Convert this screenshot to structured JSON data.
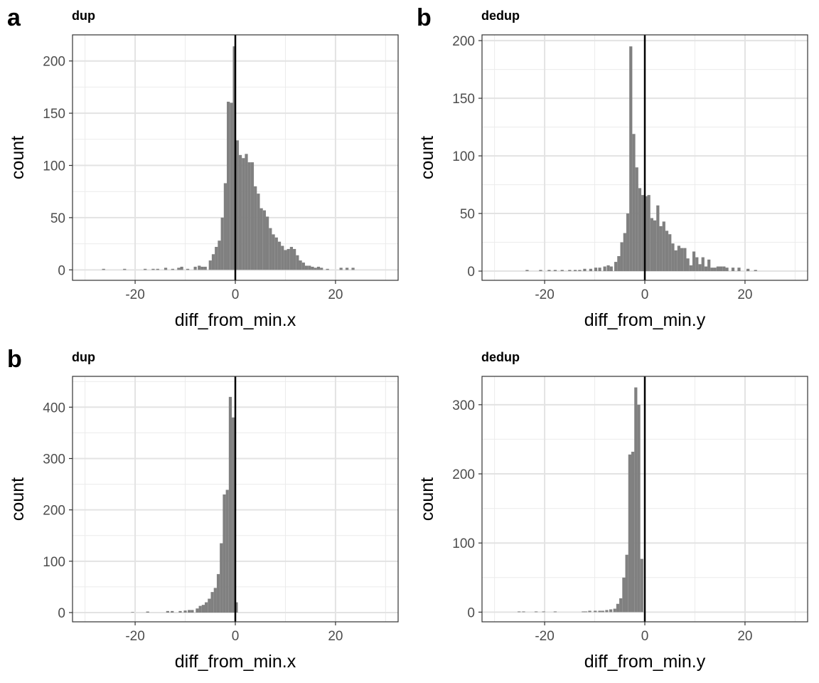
{
  "chart_data": [
    {
      "type": "bar",
      "panel_label": "a",
      "title": "dup",
      "xlabel": "diff_from_min.x",
      "ylabel": "count",
      "xlim": [
        -32.5,
        32.5
      ],
      "ylim": [
        -10,
        225
      ],
      "xticks": [
        -20,
        0,
        20
      ],
      "xtick_labels": [
        "-20",
        "0",
        "20"
      ],
      "yticks": [
        0,
        50,
        100,
        150,
        200
      ],
      "ytick_labels": [
        "0",
        "50",
        "100",
        "150",
        "200"
      ],
      "vline": 0,
      "grid": true,
      "bin_width": 0.6,
      "bins": [
        [
          -26.3,
          1
        ],
        [
          -22.1,
          1
        ],
        [
          -18.0,
          1
        ],
        [
          -16.4,
          1
        ],
        [
          -15.5,
          1
        ],
        [
          -13.9,
          2
        ],
        [
          -12.5,
          1
        ],
        [
          -11.3,
          2
        ],
        [
          -10.7,
          3
        ],
        [
          -9.5,
          1
        ],
        [
          -8.0,
          3
        ],
        [
          -7.2,
          4
        ],
        [
          -6.6,
          3
        ],
        [
          -6.0,
          3
        ],
        [
          -5.0,
          9
        ],
        [
          -4.4,
          15
        ],
        [
          -3.8,
          22
        ],
        [
          -3.2,
          28
        ],
        [
          -2.6,
          50
        ],
        [
          -2.0,
          83
        ],
        [
          -1.4,
          161
        ],
        [
          -0.8,
          160
        ],
        [
          -0.2,
          214
        ],
        [
          0.4,
          124
        ],
        [
          1.0,
          110
        ],
        [
          1.6,
          107
        ],
        [
          2.2,
          111
        ],
        [
          2.8,
          103
        ],
        [
          3.4,
          103
        ],
        [
          4.0,
          80
        ],
        [
          4.6,
          73
        ],
        [
          5.2,
          59
        ],
        [
          5.8,
          57
        ],
        [
          6.4,
          51
        ],
        [
          7.0,
          40
        ],
        [
          7.6,
          34
        ],
        [
          8.2,
          31
        ],
        [
          8.8,
          27
        ],
        [
          9.4,
          23
        ],
        [
          10.0,
          19
        ],
        [
          10.6,
          20
        ],
        [
          11.2,
          22
        ],
        [
          11.8,
          20
        ],
        [
          12.4,
          14
        ],
        [
          13.0,
          9
        ],
        [
          13.6,
          7
        ],
        [
          14.2,
          4
        ],
        [
          14.8,
          4
        ],
        [
          15.4,
          3
        ],
        [
          16.0,
          2
        ],
        [
          16.6,
          3
        ],
        [
          17.2,
          2
        ],
        [
          18.4,
          1
        ],
        [
          21.1,
          2
        ],
        [
          22.3,
          2
        ],
        [
          23.5,
          2
        ]
      ]
    },
    {
      "type": "bar",
      "panel_label": "b",
      "title": "dedup",
      "xlabel": "diff_from_min.y",
      "ylabel": "count",
      "xlim": [
        -32.5,
        32.5
      ],
      "ylim": [
        -8,
        205
      ],
      "xticks": [
        -20,
        0,
        20
      ],
      "xtick_labels": [
        "-20",
        "0",
        "20"
      ],
      "yticks": [
        0,
        50,
        100,
        150,
        200
      ],
      "ytick_labels": [
        "0",
        "50",
        "100",
        "150",
        "200"
      ],
      "vline": 0,
      "grid": true,
      "bin_width": 0.6,
      "bins": [
        [
          -23.5,
          1
        ],
        [
          -20.8,
          1
        ],
        [
          -19.1,
          1
        ],
        [
          -17.9,
          1
        ],
        [
          -16.5,
          1
        ],
        [
          -15.0,
          1
        ],
        [
          -13.9,
          1
        ],
        [
          -13.0,
          1
        ],
        [
          -12.0,
          2
        ],
        [
          -10.8,
          2
        ],
        [
          -9.8,
          3
        ],
        [
          -9.0,
          3
        ],
        [
          -8.0,
          4
        ],
        [
          -7.3,
          5
        ],
        [
          -6.7,
          4
        ],
        [
          -5.8,
          8
        ],
        [
          -5.2,
          13
        ],
        [
          -4.6,
          25
        ],
        [
          -4.0,
          33
        ],
        [
          -3.4,
          50
        ],
        [
          -2.8,
          195
        ],
        [
          -2.2,
          119
        ],
        [
          -1.6,
          90
        ],
        [
          -1.0,
          72
        ],
        [
          -0.4,
          66
        ],
        [
          0.2,
          65
        ],
        [
          0.8,
          66
        ],
        [
          1.4,
          46
        ],
        [
          2.0,
          44
        ],
        [
          2.6,
          57
        ],
        [
          3.2,
          39
        ],
        [
          3.8,
          43
        ],
        [
          4.4,
          35
        ],
        [
          5.0,
          32
        ],
        [
          5.6,
          24
        ],
        [
          6.2,
          18
        ],
        [
          6.8,
          22
        ],
        [
          7.4,
          20
        ],
        [
          8.0,
          20
        ],
        [
          8.6,
          11
        ],
        [
          9.2,
          5
        ],
        [
          9.8,
          17
        ],
        [
          10.4,
          12
        ],
        [
          11.0,
          6
        ],
        [
          11.6,
          12
        ],
        [
          12.2,
          4
        ],
        [
          12.8,
          10
        ],
        [
          13.4,
          3
        ],
        [
          14.0,
          3
        ],
        [
          14.6,
          4
        ],
        [
          15.2,
          4
        ],
        [
          15.8,
          4
        ],
        [
          16.4,
          3
        ],
        [
          17.6,
          3
        ],
        [
          18.8,
          3
        ],
        [
          20.6,
          2
        ],
        [
          22.1,
          1
        ]
      ]
    },
    {
      "type": "bar",
      "panel_label": "b",
      "title": "dup",
      "xlabel": "diff_from_min.x",
      "ylabel": "count",
      "xlim": [
        -32.5,
        32.5
      ],
      "ylim": [
        -18,
        460
      ],
      "xticks": [
        -20,
        0,
        20
      ],
      "xtick_labels": [
        "-20",
        "0",
        "20"
      ],
      "yticks": [
        0,
        100,
        200,
        300,
        400
      ],
      "ytick_labels": [
        "0",
        "100",
        "200",
        "300",
        "400"
      ],
      "vline": 0,
      "grid": true,
      "bin_width": 0.6,
      "bins": [
        [
          -20.5,
          1
        ],
        [
          -17.5,
          2
        ],
        [
          -13.5,
          3
        ],
        [
          -12.6,
          3
        ],
        [
          -11.0,
          3
        ],
        [
          -10.0,
          4
        ],
        [
          -9.2,
          5
        ],
        [
          -8.6,
          5
        ],
        [
          -7.6,
          8
        ],
        [
          -7.0,
          13
        ],
        [
          -6.4,
          15
        ],
        [
          -5.8,
          20
        ],
        [
          -5.2,
          27
        ],
        [
          -4.6,
          40
        ],
        [
          -4.0,
          48
        ],
        [
          -3.4,
          75
        ],
        [
          -2.8,
          135
        ],
        [
          -2.2,
          230
        ],
        [
          -1.6,
          239
        ],
        [
          -1.0,
          420
        ],
        [
          -0.4,
          380
        ],
        [
          0.2,
          20
        ]
      ]
    },
    {
      "type": "bar",
      "panel_label": "",
      "title": "dedup",
      "xlabel": "diff_from_min.y",
      "ylabel": "count",
      "xlim": [
        -32.5,
        32.5
      ],
      "ylim": [
        -14,
        341
      ],
      "xticks": [
        -20,
        0,
        20
      ],
      "xtick_labels": [
        "-20",
        "0",
        "20"
      ],
      "yticks": [
        0,
        100,
        200,
        300
      ],
      "ytick_labels": [
        "0",
        "100",
        "200",
        "300"
      ],
      "vline": 0,
      "grid": true,
      "bin_width": 0.6,
      "bins": [
        [
          -25.1,
          1
        ],
        [
          -24.2,
          1
        ],
        [
          -21.7,
          1
        ],
        [
          -20.2,
          1
        ],
        [
          -17.9,
          1
        ],
        [
          -12.3,
          1
        ],
        [
          -11.8,
          1
        ],
        [
          -11.0,
          2
        ],
        [
          -9.9,
          2
        ],
        [
          -9.0,
          2
        ],
        [
          -8.4,
          2
        ],
        [
          -7.6,
          3
        ],
        [
          -6.8,
          4
        ],
        [
          -6.0,
          5
        ],
        [
          -5.4,
          12
        ],
        [
          -4.8,
          20
        ],
        [
          -4.2,
          50
        ],
        [
          -3.6,
          83
        ],
        [
          -3.0,
          228
        ],
        [
          -2.4,
          232
        ],
        [
          -1.8,
          325
        ],
        [
          -1.2,
          300
        ],
        [
          -0.6,
          77
        ]
      ]
    }
  ]
}
